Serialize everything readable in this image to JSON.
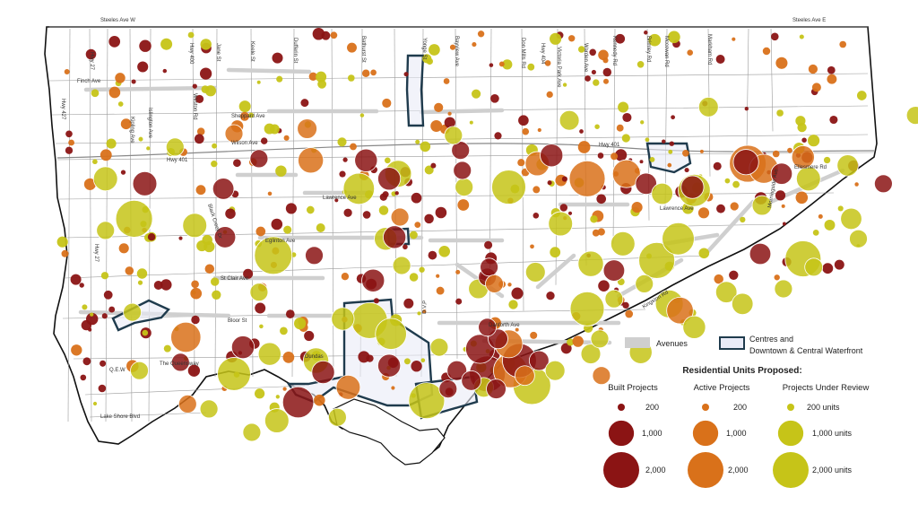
{
  "map": {
    "road_labels": {
      "steeles_w": "Steeles Ave W",
      "steeles_e": "Steeles Ave E",
      "finch": "Finch Ave",
      "sheppard": "Sheppard Ave",
      "wilson": "Wilson Ave",
      "hwy401_w": "Hwy 401",
      "hwy401_e": "Hwy 401",
      "lawrence_w": "Lawrence Ave",
      "lawrence_e": "Lawrence Ave",
      "eglinton": "Eglinton Ave",
      "st_clair": "St Clair Ave",
      "bloor": "Bloor St",
      "danforth": "Danforth Ave",
      "queensway": "The Queensway",
      "qew": "Q.E.W",
      "lakeshore": "Lake Shore Blvd",
      "dundas": "Dundas",
      "dvp": "D.V.P",
      "kingston": "Kingston Rd",
      "ellesmere": "Ellesmere Rd",
      "black_creek": "Black Creek Dr",
      "hwy27_n": "Hwy 27",
      "hwy27_s": "Hwy 27",
      "hwy427": "Hwy 427",
      "hwy400": "Hwy 400",
      "hwy404": "Hwy 404",
      "kipling": "Kipling Ave",
      "islington": "Islington Ave",
      "weston": "Weston Rd",
      "jane": "Jane St",
      "keele": "Keele St",
      "dufferin": "Dufferin St",
      "bathurst": "Bathurst St",
      "yonge": "Yonge St",
      "bayview": "Bayview Ave",
      "don_mills": "Don Mills Rd",
      "victoria_park": "Victoria Park Ave",
      "warden": "Warden Ave",
      "kennedy": "Kennedy Rd",
      "brimley": "Brimley Rd",
      "mccowan": "Mccowan Rd",
      "markham": "Markham Rd",
      "morningside": "Morningside Ave"
    },
    "bubbles": [
      {
        "type": "review",
        "units": 2100,
        "lon": -79.596,
        "lat": 43.741
      },
      {
        "type": "review",
        "units": 2200,
        "lon": -79.518,
        "lat": 43.719
      },
      {
        "type": "review",
        "units": 1500,
        "lon": -79.47,
        "lat": 43.759
      },
      {
        "type": "review",
        "units": 1800,
        "lon": -79.386,
        "lat": 43.76
      },
      {
        "type": "active",
        "units": 2000,
        "lon": -79.342,
        "lat": 43.765
      },
      {
        "type": "active",
        "units": 1200,
        "lon": -79.32,
        "lat": 43.768
      },
      {
        "type": "review",
        "units": 1600,
        "lon": -79.291,
        "lat": 43.729
      },
      {
        "type": "review",
        "units": 2000,
        "lon": -79.303,
        "lat": 43.716
      },
      {
        "type": "review",
        "units": 2000,
        "lon": -79.221,
        "lat": 43.717
      },
      {
        "type": "active",
        "units": 2100,
        "lon": -79.252,
        "lat": 43.774
      },
      {
        "type": "active",
        "units": 1300,
        "lon": -79.243,
        "lat": 43.771
      },
      {
        "type": "built",
        "units": 1000,
        "lon": -79.253,
        "lat": 43.775
      },
      {
        "type": "review",
        "units": 1600,
        "lon": -79.282,
        "lat": 43.758
      },
      {
        "type": "review",
        "units": 1500,
        "lon": -79.452,
        "lat": 43.672
      },
      {
        "type": "review",
        "units": 2000,
        "lon": -79.464,
        "lat": 43.68
      },
      {
        "type": "active",
        "units": 1400,
        "lon": -79.567,
        "lat": 43.67
      },
      {
        "type": "review",
        "units": 1700,
        "lon": -79.54,
        "lat": 43.648
      },
      {
        "type": "built",
        "units": 1500,
        "lon": -79.504,
        "lat": 43.631
      },
      {
        "type": "review",
        "units": 2000,
        "lon": -79.432,
        "lat": 43.632
      },
      {
        "type": "built",
        "units": 2000,
        "lon": -79.398,
        "lat": 43.648
      },
      {
        "type": "active",
        "units": 1800,
        "lon": -79.385,
        "lat": 43.65
      },
      {
        "type": "built",
        "units": 1800,
        "lon": -79.38,
        "lat": 43.656
      },
      {
        "type": "review",
        "units": 2200,
        "lon": -79.373,
        "lat": 43.641
      },
      {
        "type": "built",
        "units": 1300,
        "lon": -79.402,
        "lat": 43.663
      },
      {
        "type": "active",
        "units": 1200,
        "lon": -79.386,
        "lat": 43.666
      },
      {
        "type": "review",
        "units": 1800,
        "lon": -79.342,
        "lat": 43.687
      },
      {
        "type": "active",
        "units": 1100,
        "lon": -79.29,
        "lat": 43.686
      },
      {
        "type": "review",
        "units": 1200,
        "lon": -79.296,
        "lat": 43.69
      },
      {
        "type": "built",
        "units": 800,
        "lon": -79.466,
        "lat": 43.776
      },
      {
        "type": "active",
        "units": 1000,
        "lon": -79.497,
        "lat": 43.776
      },
      {
        "type": "built",
        "units": 900,
        "lon": -79.59,
        "lat": 43.762
      },
      {
        "type": "review",
        "units": 900,
        "lon": -79.612,
        "lat": 43.765
      },
      {
        "type": "built",
        "units": 700,
        "lon": -79.546,
        "lat": 43.759
      },
      {
        "type": "review",
        "units": 900,
        "lon": -79.562,
        "lat": 43.737
      },
      {
        "type": "built",
        "units": 700,
        "lon": -79.545,
        "lat": 43.73
      },
      {
        "type": "review",
        "units": 1100,
        "lon": -79.448,
        "lat": 43.768
      },
      {
        "type": "built",
        "units": 800,
        "lon": -79.453,
        "lat": 43.765
      },
      {
        "type": "review",
        "units": 600,
        "lon": -79.352,
        "lat": 43.8
      },
      {
        "type": "review",
        "units": 600,
        "lon": -79.274,
        "lat": 43.808
      },
      {
        "type": "built",
        "units": 800,
        "lon": -79.283,
        "lat": 43.76
      },
      {
        "type": "built",
        "units": 800,
        "lon": -79.362,
        "lat": 43.779
      },
      {
        "type": "active",
        "units": 900,
        "lon": -79.37,
        "lat": 43.774
      },
      {
        "type": "built",
        "units": 700,
        "lon": -79.309,
        "lat": 43.762
      },
      {
        "type": "review",
        "units": 700,
        "lon": -79.3,
        "lat": 43.756
      },
      {
        "type": "built",
        "units": 700,
        "lon": -79.233,
        "lat": 43.768
      },
      {
        "type": "review",
        "units": 900,
        "lon": -79.218,
        "lat": 43.765
      },
      {
        "type": "review",
        "units": 700,
        "lon": -79.196,
        "lat": 43.773
      },
      {
        "type": "review",
        "units": 700,
        "lon": -79.194,
        "lat": 43.741
      },
      {
        "type": "review",
        "units": 800,
        "lon": -79.455,
        "lat": 43.729
      },
      {
        "type": "built",
        "units": 800,
        "lon": -79.45,
        "lat": 43.73
      },
      {
        "type": "review",
        "units": 900,
        "lon": -79.357,
        "lat": 43.738
      },
      {
        "type": "review",
        "units": 900,
        "lon": -79.322,
        "lat": 43.726
      },
      {
        "type": "built",
        "units": 700,
        "lon": -79.327,
        "lat": 43.71
      },
      {
        "type": "review",
        "units": 1000,
        "lon": -79.34,
        "lat": 43.714
      },
      {
        "type": "review",
        "units": 800,
        "lon": -79.52,
        "lat": 43.66
      },
      {
        "type": "built",
        "units": 800,
        "lon": -79.462,
        "lat": 43.704
      },
      {
        "type": "review",
        "units": 800,
        "lon": -79.479,
        "lat": 43.681
      },
      {
        "type": "built",
        "units": 800,
        "lon": -79.535,
        "lat": 43.664
      },
      {
        "type": "review",
        "units": 1000,
        "lon": -79.494,
        "lat": 43.656
      },
      {
        "type": "built",
        "units": 800,
        "lon": -79.49,
        "lat": 43.649
      },
      {
        "type": "review",
        "units": 900,
        "lon": -79.516,
        "lat": 43.62
      },
      {
        "type": "active",
        "units": 900,
        "lon": -79.476,
        "lat": 43.64
      },
      {
        "type": "built",
        "units": 800,
        "lon": -79.453,
        "lat": 43.653
      },
      {
        "type": "review",
        "units": 800,
        "lon": -79.312,
        "lat": 43.661
      },
      {
        "type": "review",
        "units": 800,
        "lon": -79.282,
        "lat": 43.676
      },
      {
        "type": "review",
        "units": 700,
        "lon": -79.264,
        "lat": 43.697
      },
      {
        "type": "review",
        "units": 700,
        "lon": -79.255,
        "lat": 43.69
      },
      {
        "type": "built",
        "units": 700,
        "lon": -79.245,
        "lat": 43.72
      },
      {
        "type": "active",
        "units": 800,
        "lon": -79.221,
        "lat": 43.778
      },
      {
        "type": "built",
        "units": 500,
        "lon": -79.176,
        "lat": 43.762
      },
      {
        "type": "review",
        "units": 600,
        "lon": -79.244,
        "lat": 43.749
      },
      {
        "type": "review",
        "units": 500,
        "lon": -79.158,
        "lat": 43.803
      },
      {
        "type": "review",
        "units": 600,
        "lon": -79.4,
        "lat": 43.64
      },
      {
        "type": "built",
        "units": 600,
        "lon": -79.415,
        "lat": 43.65
      },
      {
        "type": "built",
        "units": 600,
        "lon": -79.407,
        "lat": 43.644
      },
      {
        "type": "built",
        "units": 600,
        "lon": -79.393,
        "lat": 43.639
      },
      {
        "type": "built",
        "units": 600,
        "lon": -79.392,
        "lat": 43.669
      },
      {
        "type": "active",
        "units": 600,
        "lon": -79.377,
        "lat": 43.647
      },
      {
        "type": "built",
        "units": 600,
        "lon": -79.369,
        "lat": 43.656
      },
      {
        "type": "review",
        "units": 600,
        "lon": -79.36,
        "lat": 43.65
      },
      {
        "type": "built",
        "units": 500,
        "lon": -79.42,
        "lat": 43.639
      },
      {
        "type": "review",
        "units": 500,
        "lon": -79.425,
        "lat": 43.664
      },
      {
        "type": "built",
        "units": 500,
        "lon": -79.398,
        "lat": 43.676
      },
      {
        "type": "review",
        "units": 600,
        "lon": -79.34,
        "lat": 43.66
      },
      {
        "type": "active",
        "units": 500,
        "lon": -79.334,
        "lat": 43.647
      },
      {
        "type": "review",
        "units": 500,
        "lon": -79.335,
        "lat": 43.669
      },
      {
        "type": "built",
        "units": 500,
        "lon": -79.398,
        "lat": 43.706
      },
      {
        "type": "built",
        "units": 500,
        "lon": -79.397,
        "lat": 43.712
      },
      {
        "type": "review",
        "units": 600,
        "lon": -79.403,
        "lat": 43.699
      },
      {
        "type": "active",
        "units": 500,
        "lon": -79.394,
        "lat": 43.702
      },
      {
        "type": "review",
        "units": 500,
        "lon": -79.446,
        "lat": 43.713
      },
      {
        "type": "review",
        "units": 600,
        "lon": -79.371,
        "lat": 43.709
      },
      {
        "type": "review",
        "units": 500,
        "lon": -79.411,
        "lat": 43.76
      },
      {
        "type": "built",
        "units": 500,
        "lon": -79.412,
        "lat": 43.77
      },
      {
        "type": "built",
        "units": 500,
        "lon": -79.413,
        "lat": 43.782
      },
      {
        "type": "review",
        "units": 500,
        "lon": -79.417,
        "lat": 43.791
      },
      {
        "type": "active",
        "units": 600,
        "lon": -79.499,
        "lat": 43.795
      },
      {
        "type": "built",
        "units": 500,
        "lon": -79.526,
        "lat": 43.777
      },
      {
        "type": "review",
        "units": 500,
        "lon": -79.573,
        "lat": 43.784
      },
      {
        "type": "review",
        "units": 500,
        "lon": -79.612,
        "lat": 43.734
      },
      {
        "type": "active",
        "units": 500,
        "lon": -79.54,
        "lat": 43.792
      },
      {
        "type": "active",
        "units": 500,
        "lon": -79.447,
        "lat": 43.742
      },
      {
        "type": "built",
        "units": 500,
        "lon": -79.495,
        "lat": 43.719
      },
      {
        "type": "review",
        "units": 500,
        "lon": -79.526,
        "lat": 43.697
      },
      {
        "type": "review",
        "units": 500,
        "lon": -79.597,
        "lat": 43.685
      },
      {
        "type": "review",
        "units": 500,
        "lon": -79.593,
        "lat": 43.65
      },
      {
        "type": "built",
        "units": 500,
        "lon": -79.57,
        "lat": 43.655
      },
      {
        "type": "review",
        "units": 500,
        "lon": -79.554,
        "lat": 43.627
      },
      {
        "type": "active",
        "units": 500,
        "lon": -79.566,
        "lat": 43.63
      },
      {
        "type": "review",
        "units": 500,
        "lon": -79.53,
        "lat": 43.613
      },
      {
        "type": "review",
        "units": 500,
        "lon": -79.482,
        "lat": 43.622
      },
      {
        "type": "review",
        "units": 500,
        "lon": -79.327,
        "lat": 43.693
      },
      {
        "type": "review",
        "units": 500,
        "lon": -79.232,
        "lat": 43.699
      },
      {
        "type": "review",
        "units": 500,
        "lon": -79.215,
        "lat": 43.712
      },
      {
        "type": "review",
        "units": 500,
        "lon": -79.19,
        "lat": 43.729
      },
      {
        "type": "review",
        "units": 500,
        "lon": -79.31,
        "lat": 43.702
      }
    ],
    "small_points": {
      "count": 420,
      "radius_units": 120
    }
  },
  "legend": {
    "avenues_label": "Avenues",
    "centres_label_1": "Centres and",
    "centres_label_2": "Downtown & Central Waterfront",
    "title": "Residential Units Proposed:",
    "columns": [
      {
        "type": "built",
        "heading": "Built Projects",
        "labels": [
          "200",
          "1,000",
          "2,000"
        ]
      },
      {
        "type": "active",
        "heading": "Active Projects",
        "labels": [
          "200",
          "1,000",
          "2,000"
        ]
      },
      {
        "type": "review",
        "heading": "Projects Under Review",
        "labels": [
          "200 units",
          "1,000 units",
          "2,000 units"
        ]
      }
    ],
    "sizes": [
      200,
      1000,
      2000
    ]
  },
  "colors": {
    "built": "#8b1414",
    "active": "#d9711a",
    "review": "#c6c418",
    "avenue": "#cfcfcf",
    "centre_fill": "#e9ebf7",
    "centre_stroke": "#1f3b4d",
    "roads": "#9a9a9a",
    "boundary": "#111111"
  }
}
